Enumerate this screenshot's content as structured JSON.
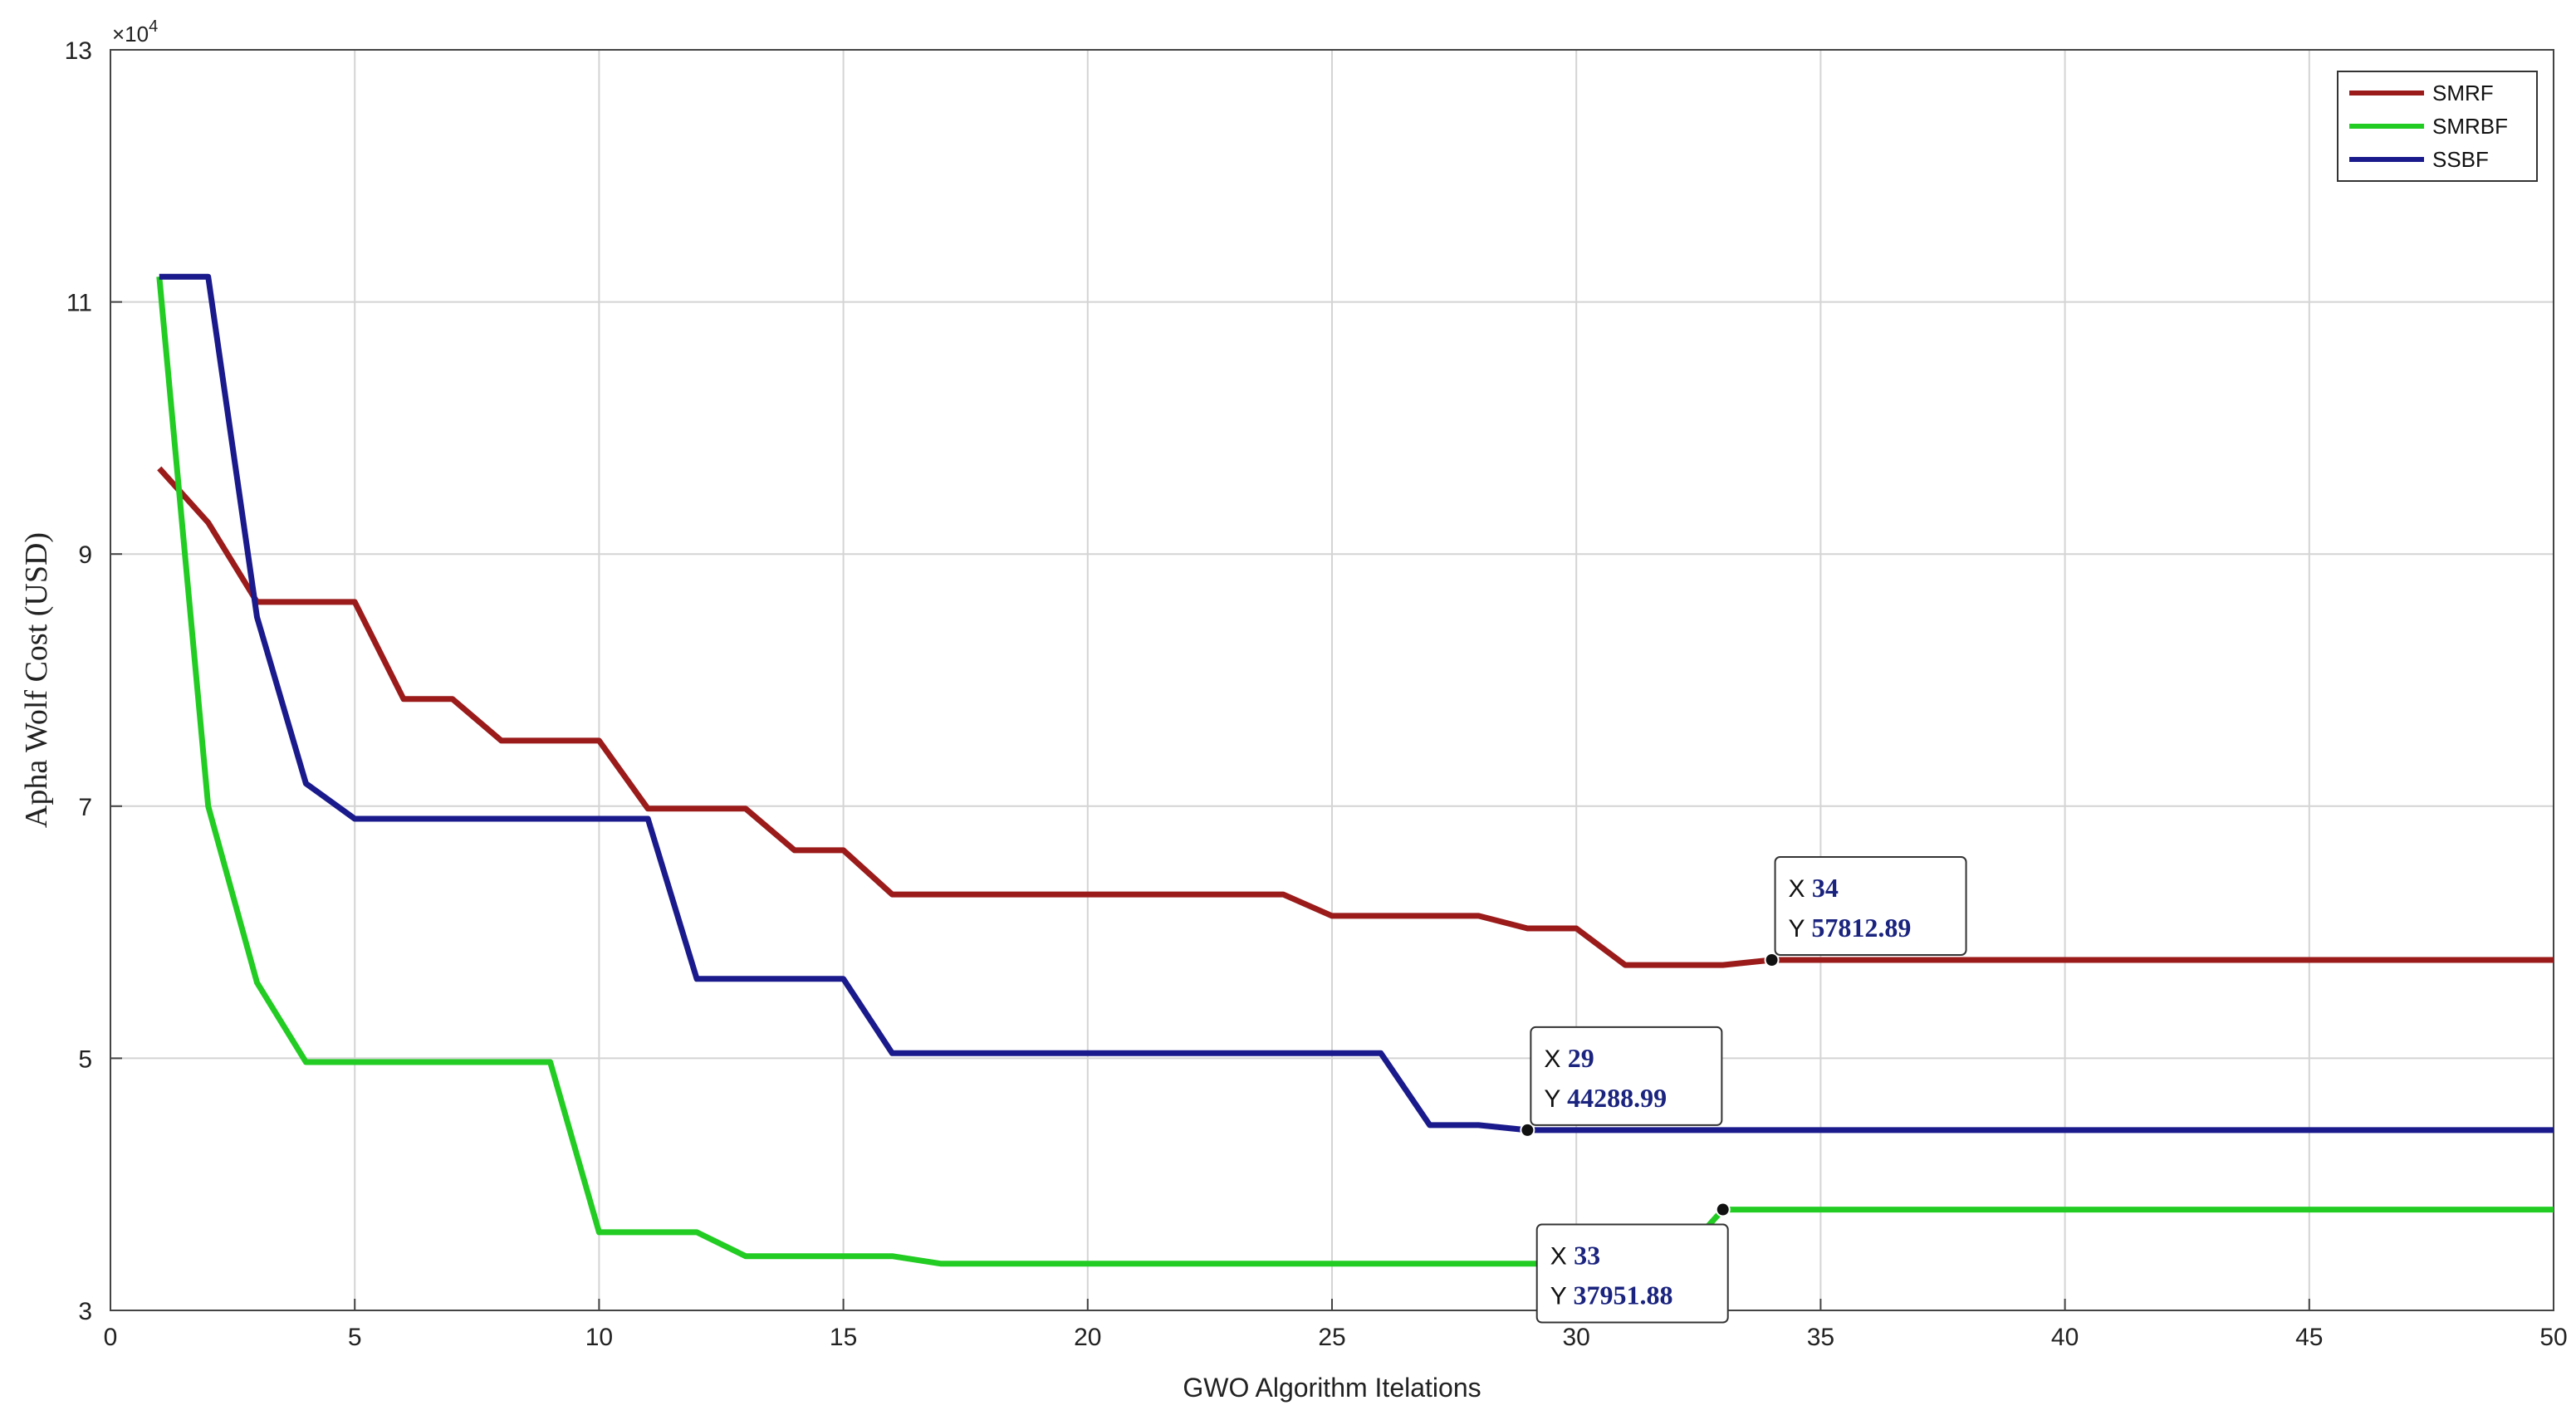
{
  "chart_data": {
    "type": "line",
    "xlabel": "GWO Algorithm Itelations",
    "ylabel": "Apha Wolf Cost (USD)",
    "y_multiplier": "×10",
    "y_exponent": "4",
    "xlim": [
      0,
      50
    ],
    "ylim": [
      3,
      13
    ],
    "xticks": [
      0,
      5,
      10,
      15,
      20,
      25,
      30,
      35,
      40,
      45,
      50
    ],
    "yticks": [
      3,
      5,
      7,
      9,
      11,
      13
    ],
    "grid": true,
    "legend_position": "top-right",
    "series": [
      {
        "name": "SMRF",
        "color": "#9b1b1b",
        "x": [
          1,
          2,
          3,
          4,
          5,
          6,
          7,
          8,
          9,
          10,
          11,
          12,
          13,
          14,
          15,
          16,
          17,
          18,
          19,
          20,
          21,
          22,
          23,
          24,
          25,
          26,
          27,
          28,
          29,
          30,
          31,
          32,
          33,
          34,
          35,
          36,
          37,
          38,
          39,
          40,
          41,
          42,
          43,
          44,
          45,
          46,
          47,
          48,
          49,
          50
        ],
        "y": [
          9.68,
          9.25,
          8.62,
          8.62,
          8.62,
          7.85,
          7.85,
          7.52,
          7.52,
          7.52,
          6.98,
          6.98,
          6.98,
          6.65,
          6.65,
          6.3,
          6.3,
          6.3,
          6.3,
          6.3,
          6.3,
          6.3,
          6.3,
          6.3,
          6.13,
          6.13,
          6.13,
          6.13,
          6.03,
          6.03,
          5.74,
          5.74,
          5.74,
          5.78,
          5.78,
          5.78,
          5.78,
          5.78,
          5.78,
          5.78,
          5.78,
          5.78,
          5.78,
          5.78,
          5.78,
          5.78,
          5.78,
          5.78,
          5.78,
          5.78
        ]
      },
      {
        "name": "SMRBF",
        "color": "#22cc22",
        "x": [
          1,
          2,
          3,
          4,
          5,
          6,
          7,
          8,
          9,
          10,
          11,
          12,
          13,
          14,
          15,
          16,
          17,
          18,
          19,
          20,
          21,
          22,
          23,
          24,
          25,
          26,
          27,
          28,
          29,
          30,
          31,
          32,
          33,
          34,
          35,
          36,
          37,
          38,
          39,
          40,
          41,
          42,
          43,
          44,
          45,
          46,
          47,
          48,
          49,
          50
        ],
        "y": [
          11.2,
          7.0,
          5.6,
          4.97,
          4.97,
          4.97,
          4.97,
          4.97,
          4.97,
          3.62,
          3.62,
          3.62,
          3.43,
          3.43,
          3.43,
          3.43,
          3.37,
          3.37,
          3.37,
          3.37,
          3.37,
          3.37,
          3.37,
          3.37,
          3.37,
          3.37,
          3.37,
          3.37,
          3.37,
          3.37,
          3.37,
          3.37,
          3.8,
          3.8,
          3.8,
          3.8,
          3.8,
          3.8,
          3.8,
          3.8,
          3.8,
          3.8,
          3.8,
          3.8,
          3.8,
          3.8,
          3.8,
          3.8,
          3.8,
          3.8
        ]
      },
      {
        "name": "SSBF",
        "color": "#1a1a8c",
        "x": [
          1,
          2,
          3,
          4,
          5,
          6,
          7,
          8,
          9,
          10,
          11,
          12,
          13,
          14,
          15,
          16,
          17,
          18,
          19,
          20,
          21,
          22,
          23,
          24,
          25,
          26,
          27,
          28,
          29,
          30,
          31,
          32,
          33,
          34,
          35,
          36,
          37,
          38,
          39,
          40,
          41,
          42,
          43,
          44,
          45,
          46,
          47,
          48,
          49,
          50
        ],
        "y": [
          11.2,
          11.2,
          8.5,
          7.18,
          6.9,
          6.9,
          6.9,
          6.9,
          6.9,
          6.9,
          6.9,
          5.63,
          5.63,
          5.63,
          5.63,
          5.04,
          5.04,
          5.04,
          5.04,
          5.04,
          5.04,
          5.04,
          5.04,
          5.04,
          5.04,
          5.04,
          4.47,
          4.47,
          4.43,
          4.43,
          4.43,
          4.43,
          4.43,
          4.43,
          4.43,
          4.43,
          4.43,
          4.43,
          4.43,
          4.43,
          4.43,
          4.43,
          4.43,
          4.43,
          4.43,
          4.43,
          4.43,
          4.43,
          4.43,
          4.43
        ]
      }
    ],
    "annotations": [
      {
        "series": "SMRF",
        "x": 34,
        "y": 5.78,
        "x_label": "34",
        "y_label": "57812.89",
        "placement": "above-right"
      },
      {
        "series": "SSBF",
        "x": 29,
        "y": 4.43,
        "x_label": "29",
        "y_label": "44288.99",
        "placement": "above-right"
      },
      {
        "series": "SMRBF",
        "x": 33,
        "y": 3.8,
        "x_label": "33",
        "y_label": "37951.88",
        "placement": "below-left"
      }
    ],
    "datatip_keys": {
      "x": "X",
      "y": "Y"
    }
  }
}
